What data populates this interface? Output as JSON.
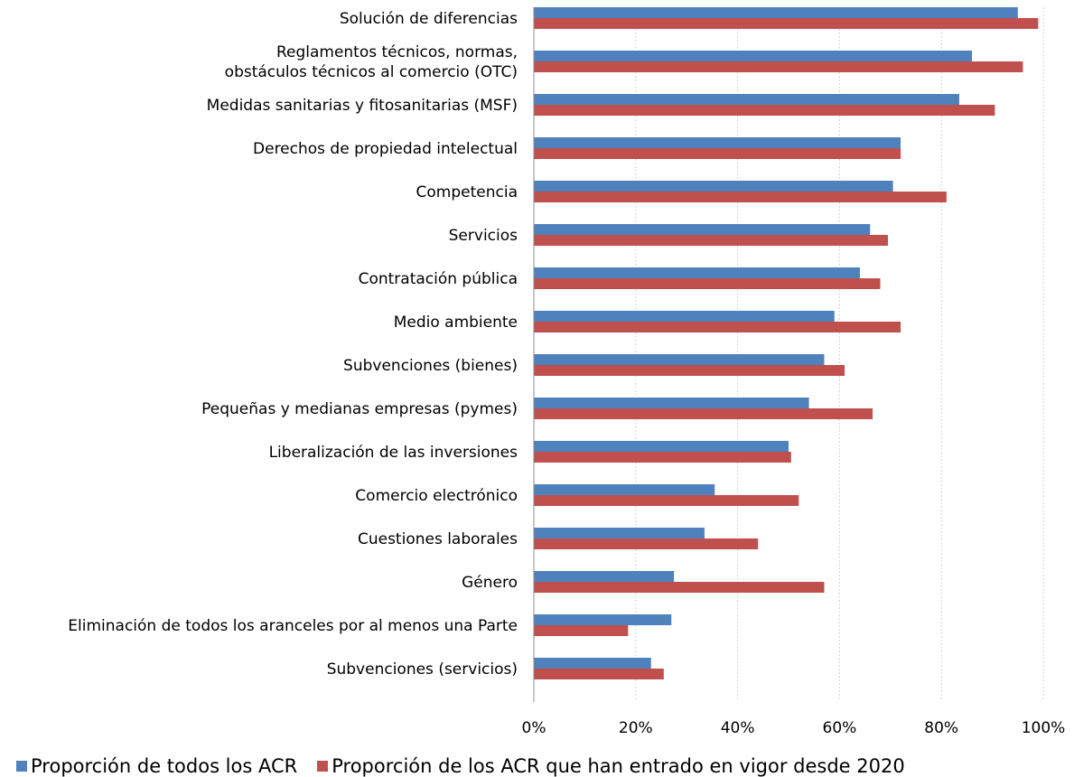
{
  "chart_data": {
    "type": "bar",
    "orientation": "horizontal",
    "categories": [
      "Solución de diferencias",
      "Reglamentos técnicos, normas,\nobstáculos técnicos al comercio (OTC)",
      "Medidas sanitarias y fitosanitarias (MSF)",
      "Derechos de propiedad intelectual",
      "Competencia",
      "Servicios",
      "Contratación pública",
      "Medio ambiente",
      "Subvenciones (bienes)",
      "Pequeñas y medianas empresas (pymes)",
      "Liberalización de las inversiones",
      "Comercio electrónico",
      "Cuestiones laborales",
      "Género",
      "Eliminación de todos los aranceles por al menos una Parte",
      "Subvenciones (servicios)"
    ],
    "series": [
      {
        "name": "Proporción de todos los ACR",
        "color": "#4F81BD",
        "values": [
          95,
          86,
          83.5,
          72,
          70.5,
          66,
          64,
          59,
          57,
          54,
          50,
          35.5,
          33.5,
          27.5,
          27,
          23
        ]
      },
      {
        "name": "Proporción de los ACR que han entrado en vigor desde 2020",
        "color": "#C0504D",
        "values": [
          99,
          96,
          90.5,
          72,
          81,
          69.5,
          68,
          72,
          61,
          66.5,
          50.5,
          52,
          44,
          57,
          18.5,
          25.5
        ]
      }
    ],
    "xlim": [
      0,
      100
    ],
    "xticks": [
      "0%",
      "20%",
      "40%",
      "60%",
      "80%",
      "100%"
    ],
    "xlabel": "",
    "ylabel": "",
    "grid": "vertical dashed",
    "legend": "bottom"
  }
}
